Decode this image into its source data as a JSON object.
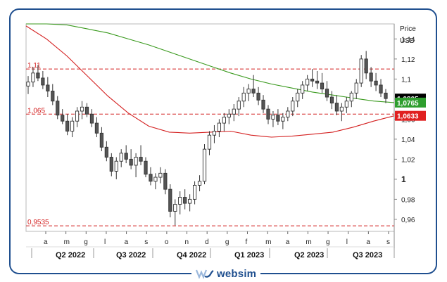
{
  "chart_data": {
    "type": "candlestick",
    "unit_label_top": "Price",
    "unit_label_bottom": "USD",
    "y_ticks": [
      "1,14",
      "1,12",
      "1,1",
      "1,08",
      "1,06",
      "1,04",
      "1,02",
      "1",
      "0,98",
      "0,96"
    ],
    "y_tick_values": [
      1.14,
      1.12,
      1.1,
      1.08,
      1.06,
      1.04,
      1.02,
      1.0,
      0.98,
      0.96
    ],
    "bold_tick": "1",
    "ylim": [
      0.948,
      1.16
    ],
    "month_labels": [
      "a",
      "m",
      "g",
      "l",
      "a",
      "s",
      "o",
      "n",
      "d",
      "g",
      "f",
      "m",
      "a",
      "m",
      "g",
      "l",
      "a",
      "s"
    ],
    "quarter_labels": [
      "Q2 2022",
      "Q3 2022",
      "Q4 2022",
      "Q1 2023",
      "Q2 2023",
      "Q3 2023"
    ],
    "levels": [
      {
        "label": "1,11",
        "value": 1.11
      },
      {
        "label": "1,065",
        "value": 1.065
      },
      {
        "label": "0,9535",
        "value": 0.9535
      }
    ],
    "price_badges": [
      {
        "label": "1,0805",
        "value": 1.0805,
        "color": "#000000",
        "text_color": "#ffffff"
      },
      {
        "label": "1,0765",
        "value": 1.0765,
        "color": "#2e9e2e",
        "text_color": "#ffffff"
      },
      {
        "label": "1,0633",
        "value": 1.0633,
        "color": "#e02020",
        "text_color": "#ffffff"
      }
    ],
    "series": [
      {
        "name": "",
        "color": "#3a9a1e",
        "values": [
          1.155,
          1.155,
          1.154,
          1.15,
          1.146,
          1.14,
          1.134,
          1.127,
          1.12,
          1.113,
          1.106,
          1.1,
          1.095,
          1.091,
          1.087,
          1.084,
          1.081,
          1.078,
          1.0765
        ]
      },
      {
        "name": "",
        "color": "#d42020",
        "values": [
          1.153,
          1.14,
          1.123,
          1.103,
          1.083,
          1.066,
          1.053,
          1.047,
          1.046,
          1.047,
          1.048,
          1.044,
          1.042,
          1.043,
          1.045,
          1.047,
          1.052,
          1.058,
          1.0633
        ]
      }
    ],
    "candles": [
      [
        1.093,
        1.103,
        1.085,
        1.097
      ],
      [
        1.097,
        1.112,
        1.092,
        1.106
      ],
      [
        1.106,
        1.114,
        1.098,
        1.101
      ],
      [
        1.101,
        1.108,
        1.09,
        1.094
      ],
      [
        1.094,
        1.102,
        1.082,
        1.088
      ],
      [
        1.088,
        1.095,
        1.074,
        1.078
      ],
      [
        1.078,
        1.083,
        1.06,
        1.064
      ],
      [
        1.064,
        1.07,
        1.055,
        1.058
      ],
      [
        1.058,
        1.065,
        1.044,
        1.048
      ],
      [
        1.048,
        1.062,
        1.042,
        1.058
      ],
      [
        1.058,
        1.072,
        1.052,
        1.068
      ],
      [
        1.068,
        1.078,
        1.06,
        1.072
      ],
      [
        1.072,
        1.076,
        1.062,
        1.065
      ],
      [
        1.065,
        1.07,
        1.052,
        1.056
      ],
      [
        1.056,
        1.062,
        1.042,
        1.046
      ],
      [
        1.046,
        1.052,
        1.028,
        1.032
      ],
      [
        1.032,
        1.038,
        1.018,
        1.022
      ],
      [
        1.022,
        1.026,
        1.003,
        1.008
      ],
      [
        1.008,
        1.022,
        1.0,
        1.018
      ],
      [
        1.018,
        1.03,
        1.012,
        1.026
      ],
      [
        1.026,
        1.034,
        1.016,
        1.02
      ],
      [
        1.02,
        1.03,
        1.01,
        1.014
      ],
      [
        1.014,
        1.026,
        1.002,
        1.022
      ],
      [
        1.022,
        1.034,
        1.014,
        1.018
      ],
      [
        1.018,
        1.022,
        1.002,
        1.005
      ],
      [
        1.005,
        1.012,
        0.994,
        0.998
      ],
      [
        0.998,
        1.006,
        0.99,
        1.002
      ],
      [
        1.002,
        1.012,
        0.996,
        1.006
      ],
      [
        1.006,
        1.01,
        0.985,
        0.99
      ],
      [
        0.99,
        0.995,
        0.962,
        0.968
      ],
      [
        0.968,
        0.98,
        0.954,
        0.975
      ],
      [
        0.975,
        0.988,
        0.965,
        0.982
      ],
      [
        0.982,
        0.99,
        0.97,
        0.976
      ],
      [
        0.976,
        0.985,
        0.968,
        0.98
      ],
      [
        0.98,
        0.998,
        0.975,
        0.994
      ],
      [
        0.994,
        1.004,
        0.988,
        0.998
      ],
      [
        0.998,
        1.035,
        0.995,
        1.03
      ],
      [
        1.03,
        1.048,
        1.024,
        1.044
      ],
      [
        1.044,
        1.054,
        1.036,
        1.048
      ],
      [
        1.048,
        1.06,
        1.042,
        1.056
      ],
      [
        1.056,
        1.066,
        1.048,
        1.062
      ],
      [
        1.062,
        1.07,
        1.055,
        1.065
      ],
      [
        1.065,
        1.075,
        1.058,
        1.07
      ],
      [
        1.07,
        1.082,
        1.063,
        1.078
      ],
      [
        1.078,
        1.092,
        1.072,
        1.086
      ],
      [
        1.086,
        1.095,
        1.078,
        1.09
      ],
      [
        1.09,
        1.104,
        1.082,
        1.086
      ],
      [
        1.086,
        1.092,
        1.074,
        1.079
      ],
      [
        1.079,
        1.084,
        1.066,
        1.07
      ],
      [
        1.07,
        1.074,
        1.055,
        1.06
      ],
      [
        1.06,
        1.068,
        1.052,
        1.064
      ],
      [
        1.064,
        1.07,
        1.054,
        1.058
      ],
      [
        1.058,
        1.066,
        1.05,
        1.062
      ],
      [
        1.062,
        1.072,
        1.058,
        1.068
      ],
      [
        1.068,
        1.082,
        1.063,
        1.078
      ],
      [
        1.078,
        1.09,
        1.072,
        1.086
      ],
      [
        1.086,
        1.098,
        1.08,
        1.094
      ],
      [
        1.094,
        1.104,
        1.088,
        1.1
      ],
      [
        1.1,
        1.11,
        1.092,
        1.098
      ],
      [
        1.098,
        1.108,
        1.09,
        1.096
      ],
      [
        1.096,
        1.106,
        1.086,
        1.09
      ],
      [
        1.09,
        1.098,
        1.078,
        1.082
      ],
      [
        1.082,
        1.088,
        1.07,
        1.076
      ],
      [
        1.076,
        1.084,
        1.064,
        1.068
      ],
      [
        1.068,
        1.076,
        1.058,
        1.072
      ],
      [
        1.072,
        1.082,
        1.066,
        1.078
      ],
      [
        1.078,
        1.088,
        1.072,
        1.086
      ],
      [
        1.086,
        1.1,
        1.08,
        1.096
      ],
      [
        1.096,
        1.124,
        1.092,
        1.12
      ],
      [
        1.12,
        1.128,
        1.1,
        1.106
      ],
      [
        1.106,
        1.112,
        1.092,
        1.098
      ],
      [
        1.098,
        1.106,
        1.088,
        1.094
      ],
      [
        1.094,
        1.1,
        1.082,
        1.086
      ],
      [
        1.086,
        1.09,
        1.076,
        1.0805
      ]
    ]
  },
  "brand": {
    "name": "websim"
  }
}
